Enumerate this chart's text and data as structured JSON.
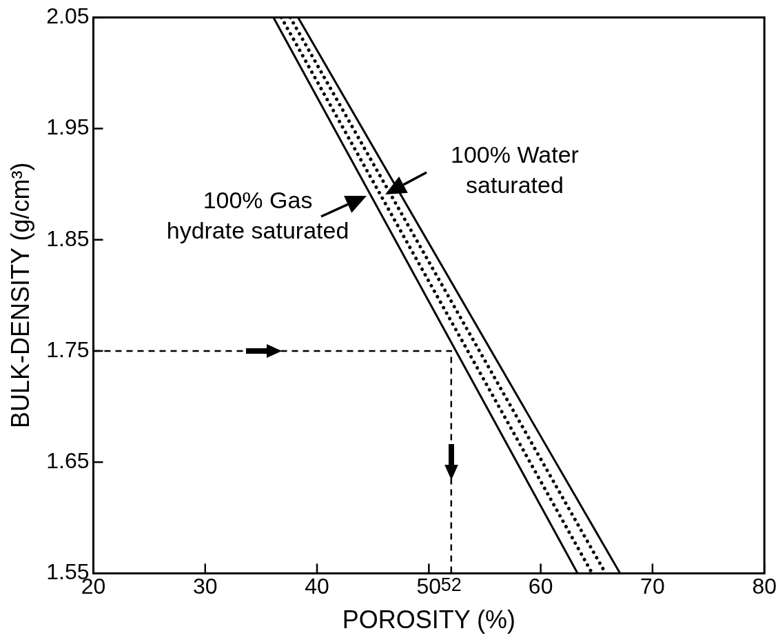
{
  "chart_data": {
    "type": "line",
    "xlabel": "POROSITY (%)",
    "ylabel": "BULK-DENSITY (g/cm³)",
    "xlim": [
      20,
      80
    ],
    "ylim": [
      1.55,
      2.05
    ],
    "xticks": [
      20,
      30,
      40,
      50,
      {
        "value": 52,
        "label": "52"
      },
      60,
      70,
      80
    ],
    "yticks": [
      1.55,
      1.65,
      1.75,
      1.85,
      1.95,
      2.05
    ],
    "grid": false,
    "legend": false,
    "marker": "none",
    "series": [
      {
        "color": "#000000",
        "x": [
          36.1,
          63.3
        ],
        "values": [
          2.05,
          1.55
        ]
      },
      {
        "color": "#000000",
        "x": [
          36.8,
          64.6
        ],
        "values": [
          2.05,
          1.55
        ],
        "line_style": "dotted"
      },
      {
        "color": "#000000",
        "x": [
          37.6,
          65.8
        ],
        "values": [
          2.05,
          1.55
        ],
        "line_style": "dotted"
      },
      {
        "color": "#000000",
        "x": [
          38.3,
          67.1
        ],
        "values": [
          2.05,
          1.55
        ]
      },
      {
        "color": "#000000",
        "x": [
          20,
          52,
          52
        ],
        "values": [
          1.75,
          1.75,
          1.55
        ],
        "line_style": "dashed"
      }
    ],
    "annotations": [
      "100% Gas\nhydrate saturated",
      "100% Water\nsaturated"
    ]
  }
}
